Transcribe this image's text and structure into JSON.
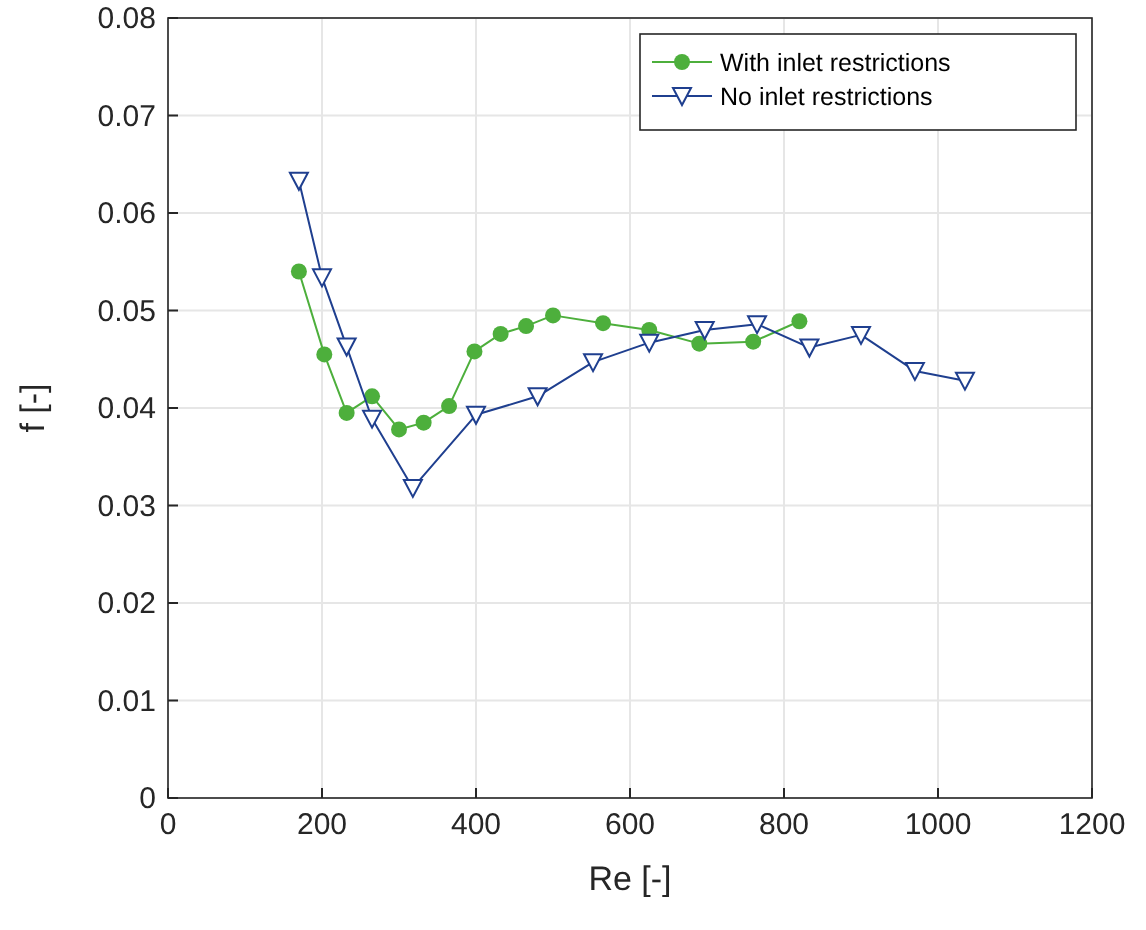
{
  "chart_data": {
    "type": "line",
    "xlabel": "Re [-]",
    "ylabel": "f [-]",
    "xlim": [
      0,
      1200
    ],
    "xticks": [
      0,
      200,
      400,
      600,
      800,
      1000,
      1200
    ],
    "ylim": [
      0,
      0.08
    ],
    "yticks": [
      0,
      0.01,
      0.02,
      0.03,
      0.04,
      0.05,
      0.06,
      0.07,
      0.08
    ],
    "grid": true,
    "legend": "top right",
    "series": [
      {
        "name": "With inlet restrictions",
        "color": "#4daf3c",
        "marker": "circle",
        "x": [
          170,
          203,
          232,
          265,
          300,
          332,
          365,
          398,
          432,
          465,
          500,
          565,
          625,
          690,
          760,
          820
        ],
        "values": [
          0.054,
          0.0455,
          0.0395,
          0.0412,
          0.0378,
          0.0385,
          0.0402,
          0.0458,
          0.0476,
          0.0484,
          0.0495,
          0.0487,
          0.048,
          0.0466,
          0.0468,
          0.0489
        ]
      },
      {
        "name": "No inlet restrictions",
        "color": "#1f3f8f",
        "marker": "triangle",
        "x": [
          170,
          200,
          232,
          265,
          318,
          400,
          480,
          552,
          625,
          697,
          765,
          833,
          900,
          970,
          1035
        ],
        "values": [
          0.0633,
          0.0534,
          0.0463,
          0.0389,
          0.0318,
          0.0393,
          0.0412,
          0.0447,
          0.0467,
          0.048,
          0.0486,
          0.0462,
          0.0475,
          0.0438,
          0.0428
        ]
      }
    ]
  }
}
